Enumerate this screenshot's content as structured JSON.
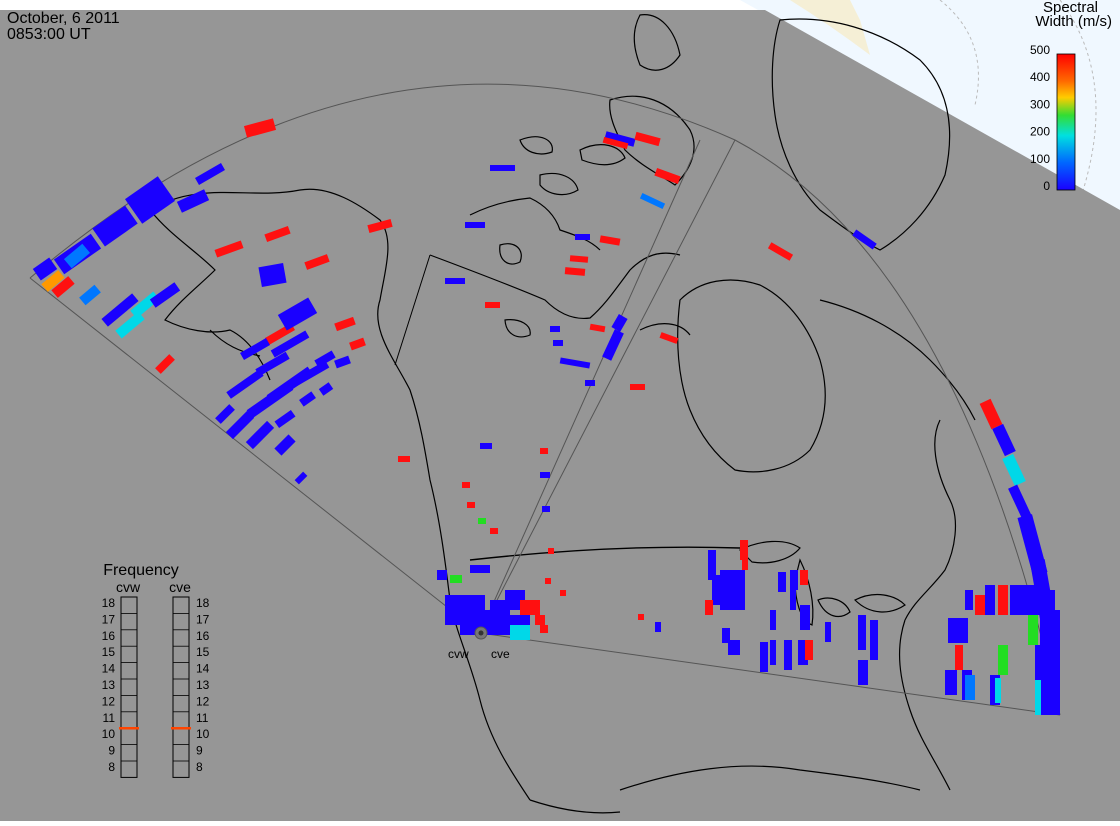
{
  "header": {
    "date": "October, 6 2011",
    "time": "0853:00 UT"
  },
  "colorbar": {
    "title_line1": "Spectral",
    "title_line2": "Width (m/s)",
    "ticks": [
      "500",
      "400",
      "300",
      "200",
      "100",
      "0"
    ],
    "stops": [
      {
        "offset": 0.0,
        "color": "#ff0000"
      },
      {
        "offset": 0.2,
        "color": "#ff6a00"
      },
      {
        "offset": 0.32,
        "color": "#ffcc00"
      },
      {
        "offset": 0.45,
        "color": "#33dd33"
      },
      {
        "offset": 0.6,
        "color": "#00e0e0"
      },
      {
        "offset": 0.8,
        "color": "#0066ff"
      },
      {
        "offset": 1.0,
        "color": "#1a00ff"
      }
    ]
  },
  "frequency_panel": {
    "title": "Frequency",
    "radar_left": "cvw",
    "radar_right": "cve",
    "scale": [
      "18",
      "17",
      "16",
      "15",
      "14",
      "13",
      "12",
      "11",
      "10",
      "9",
      "8"
    ],
    "value_left_mhz": 10.5,
    "value_right_mhz": 10.5,
    "marker_color": "#ff4400"
  },
  "radars": [
    {
      "code": "cvw"
    },
    {
      "code": "cve"
    }
  ],
  "colors": {
    "land": "#969696",
    "north_polar": "#f0f8ff",
    "ice": "#f5efd6",
    "coast": "#000000",
    "fov_line": "#555555",
    "scatter_low": "#1a00ff",
    "scatter_high": "#ff1010"
  }
}
